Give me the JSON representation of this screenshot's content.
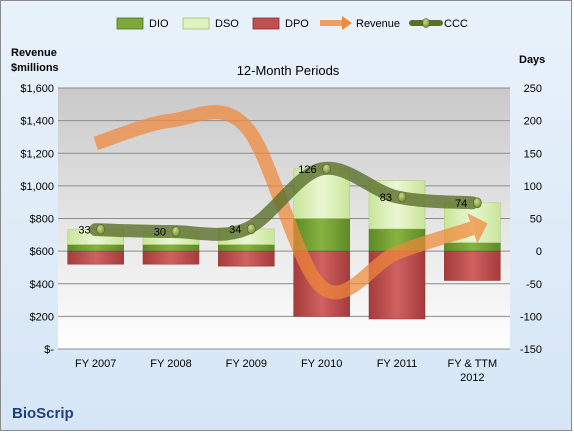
{
  "chart_data": {
    "type": "bar",
    "title": "12-Month Periods",
    "company": "BioScrip",
    "y_left_label": [
      "Revenue",
      "$millions"
    ],
    "y_right_label": "Days",
    "categories": [
      "FY 2007",
      "FY 2008",
      "FY 2009",
      "FY 2010",
      "FY 2011",
      "FY & TTM 2012"
    ],
    "left_axis": {
      "min": 0,
      "max": 1600,
      "step": 200,
      "tick_labels": [
        "$-",
        "$200",
        "$400",
        "$600",
        "$800",
        "$1,000",
        "$1,200",
        "$1,400",
        "$1,600"
      ]
    },
    "right_axis": {
      "min": -150,
      "max": 250,
      "step": 50,
      "tick_labels": [
        "-150",
        "-100",
        "-50",
        "0",
        "50",
        "100",
        "150",
        "200",
        "250"
      ]
    },
    "legend": [
      "DIO",
      "DSO",
      "DPO",
      "Revenue",
      "CCC"
    ],
    "legend_position": "top",
    "series": [
      {
        "name": "DIO",
        "axis": "right",
        "values": [
          10,
          10,
          10,
          50,
          34,
          13
        ],
        "color": "#6e9a2f"
      },
      {
        "name": "DSO",
        "axis": "right",
        "values": [
          23,
          20,
          24,
          76,
          74,
          61
        ],
        "color": "#d9efb4"
      },
      {
        "name": "DPO",
        "axis": "right",
        "values": [
          -20,
          -20,
          -23,
          -100,
          -104,
          -45
        ],
        "color": "#b84848"
      },
      {
        "name": "Revenue",
        "axis": "left",
        "type": "line",
        "values": [
          1260,
          1400,
          1360,
          380,
          590,
          740
        ],
        "color": "#f0883a"
      },
      {
        "name": "CCC",
        "axis": "right",
        "type": "line",
        "values": [
          33,
          30,
          34,
          126,
          83,
          74
        ],
        "color": "#5a6f2a"
      }
    ],
    "ccc_labels": [
      "33",
      "30",
      "34",
      "126",
      "83",
      "74"
    ]
  }
}
